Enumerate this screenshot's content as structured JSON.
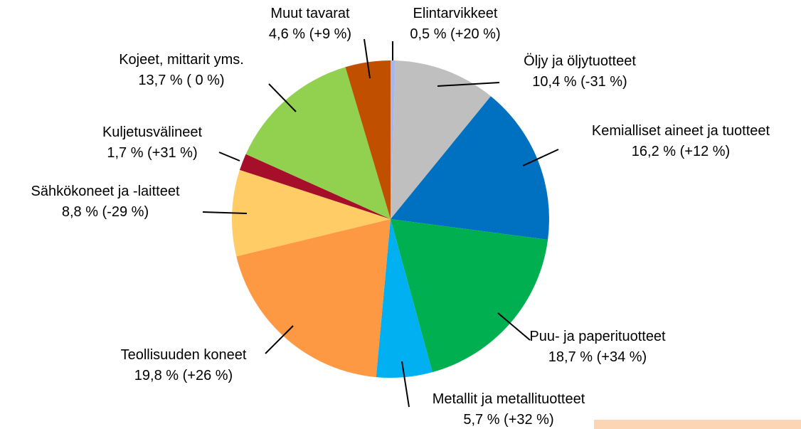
{
  "chart_data": {
    "type": "pie",
    "categories": [
      "Elintarvikkeet",
      "Öljy ja öljytuotteet",
      "Kemialliset aineet ja tuotteet",
      "Puu- ja paperituotteet",
      "Metallit ja metallituotteet",
      "Teollisuuden koneet",
      "Sähkökoneet ja -laitteet",
      "Kuljetusvälineet",
      "Kojeet, mittarit yms.",
      "Muut tavarat"
    ],
    "values": [
      0.5,
      10.4,
      16.2,
      18.7,
      5.7,
      19.8,
      8.8,
      1.7,
      13.7,
      4.6
    ],
    "value_labels": [
      "0,5 % (+20 %)",
      "10,4 % (-31 %)",
      "16,2 % (+12 %)",
      "18,7 % (+34 %)",
      "5,7 % (+32 %)",
      "19,8 % (+26 %)",
      "8,8 % (-29 %)",
      "1,7 % (+31 %)",
      "13,7 % ( 0 %)",
      "4,6 % (+9 %)"
    ],
    "colors": [
      "#a9b8ec",
      "#bfbfbf",
      "#0070c0",
      "#00b050",
      "#00b0f0",
      "#fd9843",
      "#ffcc66",
      "#a50f2a",
      "#92d050",
      "#c05000"
    ]
  }
}
